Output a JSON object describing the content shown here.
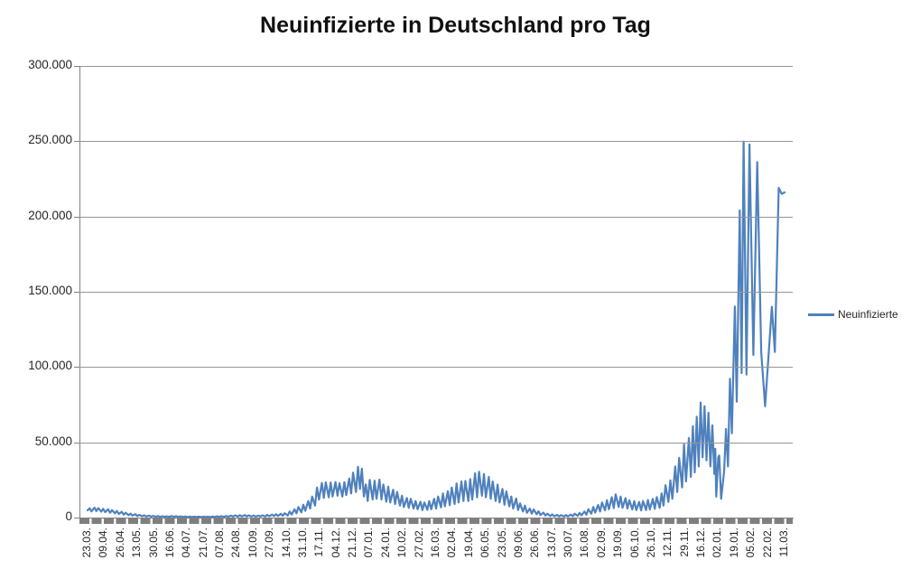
{
  "title": "Neuinfizierte in Deutschland pro Tag",
  "legend": {
    "label": "Neuinfizierte",
    "position": "right"
  },
  "colors": {
    "line": "#4F81BD",
    "gridline": "#959595",
    "axis": "#808080",
    "tick_band": "#7F7F7F",
    "text": "#262626"
  },
  "y_axis": {
    "tick_labels": [
      "300.000",
      "250.000",
      "200.000",
      "150.000",
      "100.000",
      "50.000",
      "0"
    ],
    "min": 0,
    "max": 300000,
    "step": 50000
  },
  "x_axis": {
    "tick_labels": [
      "23.03.",
      "09.04.",
      "26.04.",
      "13.05.",
      "30.05.",
      "16.06.",
      "04.07.",
      "21.07.",
      "07.08.",
      "24.08.",
      "10.09.",
      "27.09.",
      "14.10.",
      "31.10.",
      "17.11.",
      "04.12.",
      "21.12.",
      "07.01.",
      "24.01.",
      "10.02.",
      "27.02.",
      "16.03.",
      "02.04.",
      "19.04.",
      "06.05.",
      "23.05.",
      "09.06.",
      "26.06.",
      "13.07.",
      "30.07.",
      "16.08.",
      "02.09.",
      "19.09.",
      "06.10.",
      "26.10.",
      "12.11.",
      "29.11.",
      "16.12.",
      "02.01.",
      "19.01.",
      "05.02.",
      "22.02.",
      "11.03."
    ],
    "tick_interval_days": 17
  },
  "chart_data": {
    "type": "line",
    "title": "Neuinfizierte in Deutschland pro Tag",
    "xlabel": "",
    "ylabel": "",
    "ylim": [
      0,
      300000
    ],
    "grid": "horizontal every 50.000",
    "legend_position": "right",
    "x_encoding": "day index, 0 = first tick 23.03. (2020), 17 days per labeled tick, last tick 11.03. (2022)",
    "series": [
      {
        "name": "Neuinfizierte",
        "color": "#4F81BD",
        "points": [
          [
            0,
            4800
          ],
          [
            2,
            6200
          ],
          [
            4,
            4100
          ],
          [
            7,
            6600
          ],
          [
            9,
            4300
          ],
          [
            11,
            6300
          ],
          [
            14,
            3900
          ],
          [
            16,
            5800
          ],
          [
            18,
            3600
          ],
          [
            21,
            5500
          ],
          [
            23,
            3200
          ],
          [
            25,
            5000
          ],
          [
            28,
            2800
          ],
          [
            30,
            4400
          ],
          [
            32,
            2400
          ],
          [
            35,
            3800
          ],
          [
            37,
            2000
          ],
          [
            39,
            3200
          ],
          [
            42,
            1600
          ],
          [
            44,
            2600
          ],
          [
            46,
            1300
          ],
          [
            49,
            2200
          ],
          [
            51,
            1000
          ],
          [
            53,
            1800
          ],
          [
            56,
            900
          ],
          [
            58,
            1500
          ],
          [
            60,
            750
          ],
          [
            63,
            1300
          ],
          [
            65,
            650
          ],
          [
            67,
            1100
          ],
          [
            70,
            550
          ],
          [
            72,
            1000
          ],
          [
            74,
            500
          ],
          [
            77,
            900
          ],
          [
            79,
            450
          ],
          [
            81,
            850
          ],
          [
            84,
            500
          ],
          [
            86,
            1000
          ],
          [
            88,
            550
          ],
          [
            91,
            900
          ],
          [
            93,
            450
          ],
          [
            95,
            800
          ],
          [
            98,
            400
          ],
          [
            100,
            700
          ],
          [
            102,
            350
          ],
          [
            105,
            650
          ],
          [
            107,
            320
          ],
          [
            109,
            600
          ],
          [
            112,
            300
          ],
          [
            114,
            580
          ],
          [
            116,
            300
          ],
          [
            119,
            620
          ],
          [
            121,
            320
          ],
          [
            123,
            680
          ],
          [
            126,
            350
          ],
          [
            128,
            750
          ],
          [
            130,
            400
          ],
          [
            133,
            850
          ],
          [
            135,
            450
          ],
          [
            137,
            950
          ],
          [
            140,
            500
          ],
          [
            142,
            1100
          ],
          [
            144,
            550
          ],
          [
            147,
            1300
          ],
          [
            149,
            650
          ],
          [
            151,
            1500
          ],
          [
            154,
            750
          ],
          [
            156,
            1600
          ],
          [
            158,
            800
          ],
          [
            161,
            1700
          ],
          [
            163,
            800
          ],
          [
            165,
            1500
          ],
          [
            168,
            700
          ],
          [
            170,
            1400
          ],
          [
            172,
            650
          ],
          [
            175,
            1350
          ],
          [
            177,
            700
          ],
          [
            179,
            1500
          ],
          [
            182,
            750
          ],
          [
            184,
            1800
          ],
          [
            186,
            900
          ],
          [
            189,
            2000
          ],
          [
            191,
            1000
          ],
          [
            193,
            2200
          ],
          [
            195,
            1100
          ],
          [
            198,
            2500
          ],
          [
            200,
            1200
          ],
          [
            202,
            2900
          ],
          [
            205,
            1400
          ],
          [
            207,
            4000
          ],
          [
            209,
            2000
          ],
          [
            212,
            5500
          ],
          [
            214,
            2800
          ],
          [
            216,
            7000
          ],
          [
            219,
            3500
          ],
          [
            221,
            8500
          ],
          [
            223,
            4500
          ],
          [
            226,
            11000
          ],
          [
            228,
            6000
          ],
          [
            230,
            14000
          ],
          [
            233,
            8000
          ],
          [
            235,
            20000
          ],
          [
            237,
            12000
          ],
          [
            240,
            23000
          ],
          [
            242,
            13000
          ],
          [
            244,
            23400
          ],
          [
            247,
            13500
          ],
          [
            249,
            23300
          ],
          [
            251,
            14000
          ],
          [
            254,
            23600
          ],
          [
            256,
            14500
          ],
          [
            258,
            22800
          ],
          [
            261,
            14000
          ],
          [
            263,
            23500
          ],
          [
            265,
            15000
          ],
          [
            268,
            26000
          ],
          [
            270,
            16000
          ],
          [
            272,
            29900
          ],
          [
            275,
            17000
          ],
          [
            277,
            33700
          ],
          [
            279,
            19000
          ],
          [
            281,
            32500
          ],
          [
            283,
            14000
          ],
          [
            285,
            22000
          ],
          [
            287,
            11000
          ],
          [
            289,
            25000
          ],
          [
            292,
            12000
          ],
          [
            294,
            24500
          ],
          [
            296,
            12500
          ],
          [
            299,
            25200
          ],
          [
            301,
            12000
          ],
          [
            303,
            22000
          ],
          [
            306,
            10500
          ],
          [
            308,
            20600
          ],
          [
            310,
            10000
          ],
          [
            313,
            18500
          ],
          [
            315,
            9000
          ],
          [
            317,
            17000
          ],
          [
            320,
            8000
          ],
          [
            322,
            14500
          ],
          [
            324,
            7000
          ],
          [
            327,
            13000
          ],
          [
            329,
            6500
          ],
          [
            331,
            12500
          ],
          [
            334,
            6000
          ],
          [
            336,
            11000
          ],
          [
            338,
            5500
          ],
          [
            341,
            10500
          ],
          [
            343,
            5000
          ],
          [
            345,
            10000
          ],
          [
            348,
            5200
          ],
          [
            350,
            11000
          ],
          [
            352,
            5500
          ],
          [
            355,
            12500
          ],
          [
            357,
            6000
          ],
          [
            359,
            14000
          ],
          [
            362,
            6800
          ],
          [
            364,
            16000
          ],
          [
            366,
            7500
          ],
          [
            369,
            17500
          ],
          [
            371,
            8200
          ],
          [
            373,
            20000
          ],
          [
            376,
            9000
          ],
          [
            378,
            22700
          ],
          [
            380,
            10000
          ],
          [
            383,
            24000
          ],
          [
            385,
            11000
          ],
          [
            387,
            24300
          ],
          [
            390,
            11000
          ],
          [
            392,
            25500
          ],
          [
            394,
            12000
          ],
          [
            397,
            29400
          ],
          [
            399,
            13500
          ],
          [
            401,
            30500
          ],
          [
            404,
            14500
          ],
          [
            406,
            29000
          ],
          [
            408,
            13500
          ],
          [
            411,
            27000
          ],
          [
            413,
            12500
          ],
          [
            415,
            24000
          ],
          [
            418,
            11000
          ],
          [
            420,
            21900
          ],
          [
            422,
            10000
          ],
          [
            425,
            19000
          ],
          [
            427,
            8500
          ],
          [
            429,
            17400
          ],
          [
            432,
            7500
          ],
          [
            434,
            14000
          ],
          [
            436,
            6000
          ],
          [
            439,
            12700
          ],
          [
            441,
            5000
          ],
          [
            443,
            9500
          ],
          [
            446,
            4000
          ],
          [
            448,
            7900
          ],
          [
            450,
            3200
          ],
          [
            453,
            6000
          ],
          [
            455,
            2600
          ],
          [
            457,
            5400
          ],
          [
            460,
            2200
          ],
          [
            462,
            4200
          ],
          [
            464,
            1700
          ],
          [
            467,
            3300
          ],
          [
            469,
            1400
          ],
          [
            471,
            2600
          ],
          [
            474,
            1100
          ],
          [
            476,
            2100
          ],
          [
            478,
            900
          ],
          [
            481,
            1800
          ],
          [
            483,
            800
          ],
          [
            485,
            1600
          ],
          [
            488,
            750
          ],
          [
            490,
            1700
          ],
          [
            492,
            800
          ],
          [
            495,
            2000
          ],
          [
            497,
            950
          ],
          [
            499,
            2600
          ],
          [
            502,
            1200
          ],
          [
            504,
            3100
          ],
          [
            506,
            1500
          ],
          [
            509,
            4000
          ],
          [
            511,
            1900
          ],
          [
            513,
            5600
          ],
          [
            516,
            2600
          ],
          [
            518,
            7000
          ],
          [
            520,
            3300
          ],
          [
            523,
            8400
          ],
          [
            525,
            4000
          ],
          [
            527,
            10000
          ],
          [
            530,
            4800
          ],
          [
            532,
            11600
          ],
          [
            534,
            5500
          ],
          [
            537,
            13500
          ],
          [
            539,
            6300
          ],
          [
            541,
            15400
          ],
          [
            544,
            7000
          ],
          [
            546,
            14000
          ],
          [
            548,
            6500
          ],
          [
            551,
            12900
          ],
          [
            553,
            6000
          ],
          [
            555,
            11500
          ],
          [
            558,
            5400
          ],
          [
            560,
            11000
          ],
          [
            562,
            5000
          ],
          [
            565,
            10400
          ],
          [
            567,
            4800
          ],
          [
            569,
            11000
          ],
          [
            572,
            5000
          ],
          [
            574,
            11700
          ],
          [
            576,
            5400
          ],
          [
            579,
            12400
          ],
          [
            581,
            5800
          ],
          [
            583,
            13600
          ],
          [
            586,
            6500
          ],
          [
            588,
            16100
          ],
          [
            590,
            8000
          ],
          [
            592,
            21500
          ],
          [
            595,
            10500
          ],
          [
            597,
            24700
          ],
          [
            599,
            12500
          ],
          [
            602,
            33900
          ],
          [
            604,
            17000
          ],
          [
            606,
            39700
          ],
          [
            609,
            20000
          ],
          [
            611,
            48600
          ],
          [
            613,
            24000
          ],
          [
            616,
            52800
          ],
          [
            618,
            27000
          ],
          [
            620,
            60700
          ],
          [
            622,
            30000
          ],
          [
            624,
            67000
          ],
          [
            626,
            34000
          ],
          [
            628,
            76400
          ],
          [
            630,
            40000
          ],
          [
            632,
            74000
          ],
          [
            634,
            38000
          ],
          [
            636,
            69600
          ],
          [
            638,
            34000
          ],
          [
            640,
            61300
          ],
          [
            642,
            29000
          ],
          [
            643,
            45700
          ],
          [
            644,
            13900
          ],
          [
            646,
            40000
          ],
          [
            647,
            41200
          ],
          [
            649,
            12500
          ],
          [
            652,
            30600
          ],
          [
            654,
            58900
          ],
          [
            656,
            34000
          ],
          [
            658,
            92200
          ],
          [
            660,
            56000
          ],
          [
            663,
            140200
          ],
          [
            665,
            77000
          ],
          [
            668,
            204000
          ],
          [
            670,
            96000
          ],
          [
            672,
            249800
          ],
          [
            675,
            95000
          ],
          [
            678,
            247900
          ],
          [
            682,
            108000
          ],
          [
            686,
            236100
          ],
          [
            690,
            110000
          ],
          [
            694,
            73900
          ],
          [
            701,
            140000
          ],
          [
            704,
            110000
          ],
          [
            708,
            219000
          ],
          [
            711,
            215000
          ],
          [
            714,
            216000
          ]
        ]
      }
    ]
  }
}
